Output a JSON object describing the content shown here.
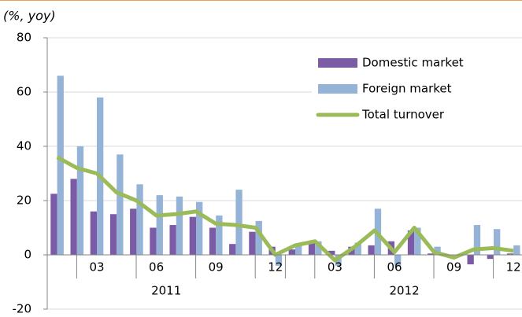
{
  "chart_data": {
    "type": "bar",
    "y_axis_label": "(%, yoy)",
    "categories": [
      null,
      null,
      "03",
      null,
      null,
      "06",
      null,
      null,
      "09",
      null,
      null,
      "12",
      null,
      null,
      "03",
      null,
      null,
      "06",
      null,
      null,
      "09",
      null,
      null,
      "12"
    ],
    "years": [
      "2011",
      "2012"
    ],
    "series": [
      {
        "name": "Domestic market",
        "type": "bar",
        "color": "#7b5aa6",
        "values": [
          22.5,
          28,
          16,
          15,
          17,
          10,
          11,
          14,
          10,
          4,
          8.5,
          3,
          2,
          5,
          1.5,
          3,
          3.5,
          5,
          9,
          0.5,
          0,
          -3.5,
          -1.5,
          0.5
        ]
      },
      {
        "name": "Foreign market",
        "type": "bar",
        "color": "#95b3d7",
        "values": [
          66,
          40,
          58,
          37,
          26,
          22,
          21.5,
          19.5,
          14.5,
          24,
          12.5,
          -4,
          4,
          5,
          -4,
          4.5,
          17,
          -4,
          10,
          3,
          -0.5,
          11,
          9.5,
          3.5
        ]
      },
      {
        "name": "Total turnover",
        "type": "line",
        "color": "#9bbb59",
        "values": [
          36,
          32,
          30,
          23,
          20,
          14.5,
          15,
          16,
          11.5,
          11,
          10,
          0,
          3.5,
          5,
          -2,
          3,
          9,
          1,
          10,
          1,
          -1,
          2,
          2.5,
          1.5
        ]
      }
    ],
    "ylim": [
      -20,
      80
    ],
    "yticks": [
      -20,
      0,
      20,
      40,
      60,
      80
    ],
    "grid": true,
    "legend": "top-right"
  }
}
